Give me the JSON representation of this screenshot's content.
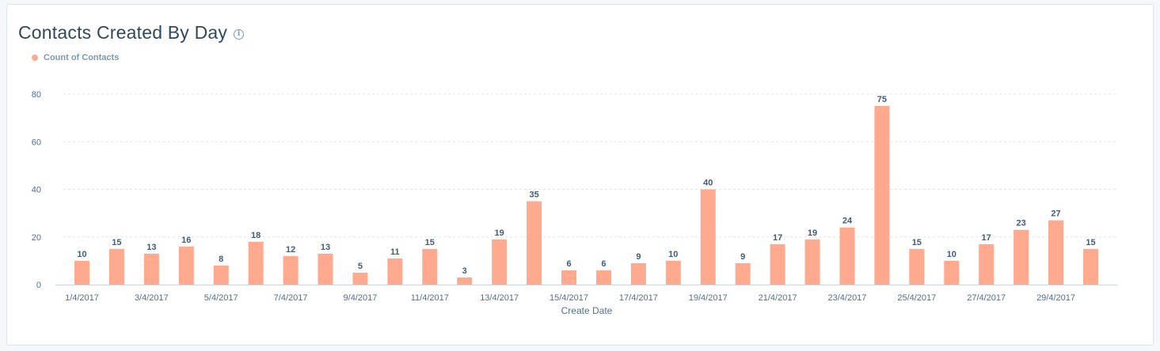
{
  "header": {
    "title": "Contacts Created By Day",
    "info_icon": "info-icon"
  },
  "colors": {
    "bar": "#ffa98f",
    "grid": "#e0e5ec",
    "axis": "#cbd6e2"
  },
  "chart_data": {
    "type": "bar",
    "title": "Contacts Created By Day",
    "xlabel": "Create Date",
    "ylabel": "",
    "ylim": [
      0,
      80
    ],
    "yticks": [
      0,
      20,
      40,
      60,
      80
    ],
    "grid": true,
    "legend_position": "top-left",
    "categories": [
      "1/4/2017",
      "2/4/2017",
      "3/4/2017",
      "4/4/2017",
      "5/4/2017",
      "6/4/2017",
      "7/4/2017",
      "8/4/2017",
      "9/4/2017",
      "10/4/2017",
      "11/4/2017",
      "12/4/2017",
      "13/4/2017",
      "14/4/2017",
      "15/4/2017",
      "16/4/2017",
      "17/4/2017",
      "18/4/2017",
      "19/4/2017",
      "20/4/2017",
      "21/4/2017",
      "22/4/2017",
      "23/4/2017",
      "24/4/2017",
      "25/4/2017",
      "26/4/2017",
      "27/4/2017",
      "28/4/2017",
      "29/4/2017",
      "30/4/2017"
    ],
    "x_tick_labels": [
      "1/4/2017",
      "",
      "3/4/2017",
      "",
      "5/4/2017",
      "",
      "7/4/2017",
      "",
      "9/4/2017",
      "",
      "11/4/2017",
      "",
      "13/4/2017",
      "",
      "15/4/2017",
      "",
      "17/4/2017",
      "",
      "19/4/2017",
      "",
      "21/4/2017",
      "",
      "23/4/2017",
      "",
      "25/4/2017",
      "",
      "27/4/2017",
      "",
      "29/4/2017",
      ""
    ],
    "series": [
      {
        "name": "Count of Contacts",
        "values": [
          10,
          15,
          13,
          16,
          8,
          18,
          12,
          13,
          5,
          11,
          15,
          3,
          19,
          35,
          6,
          6,
          9,
          10,
          40,
          9,
          17,
          19,
          24,
          75,
          15,
          10,
          17,
          23,
          27,
          15
        ]
      }
    ]
  }
}
